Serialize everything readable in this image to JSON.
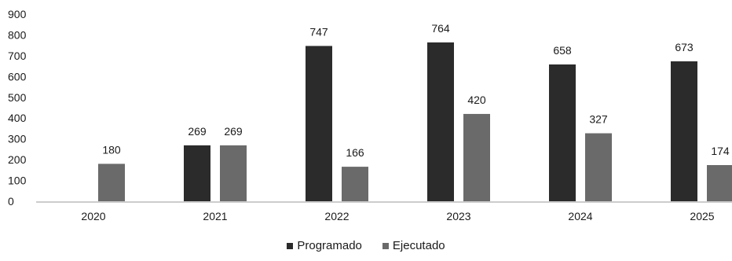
{
  "colors": {
    "programado": "#2b2b2b",
    "ejecutado": "#6a6a6a",
    "axis": "#9a9a9a",
    "text": "#1a1a1a"
  },
  "chart_data": {
    "type": "bar",
    "categories": [
      "2020",
      "2021",
      "2022",
      "2023",
      "2024",
      "2025"
    ],
    "series": [
      {
        "name": "Programado",
        "values": [
          null,
          269,
          747,
          764,
          658,
          673
        ]
      },
      {
        "name": "Ejecutado",
        "values": [
          180,
          269,
          166,
          420,
          327,
          174
        ]
      }
    ],
    "y_ticks": [
      "900",
      "800",
      "700",
      "600",
      "500",
      "400",
      "300",
      "200",
      "100",
      "0"
    ],
    "ylim": [
      0,
      900
    ],
    "grid": false,
    "legend_position": "bottom-center"
  }
}
